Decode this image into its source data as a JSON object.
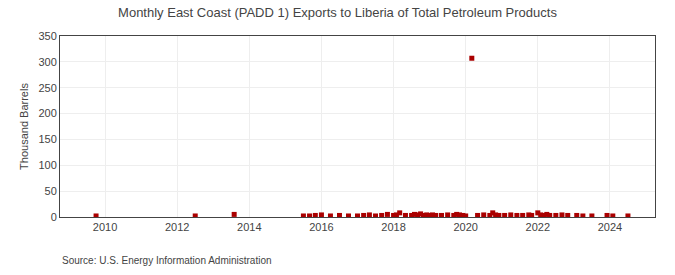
{
  "chart_data": {
    "type": "scatter",
    "title": "Monthly East Coast (PADD 1) Exports to Liberia of Total Petroleum Products",
    "ylabel": "Thousand Barrels",
    "annotations": [
      "Source: U.S. Energy Information Administration"
    ],
    "color": "#aa0000",
    "marker": "square",
    "grid": true,
    "xlim": [
      2008.75,
      2025.25
    ],
    "xticks": [
      2010,
      2012,
      2014,
      2016,
      2018,
      2020,
      2022,
      2024
    ],
    "ylim": [
      0,
      350
    ],
    "yticks": [
      0,
      50,
      100,
      150,
      200,
      250,
      300,
      350
    ],
    "x": [
      2009.75,
      2012.5,
      2013.58,
      2015.5,
      2015.67,
      2015.83,
      2016.0,
      2016.25,
      2016.5,
      2016.75,
      2017.0,
      2017.17,
      2017.33,
      2017.5,
      2017.67,
      2017.83,
      2018.0,
      2018.08,
      2018.17,
      2018.33,
      2018.5,
      2018.58,
      2018.67,
      2018.75,
      2018.83,
      2018.92,
      2019.0,
      2019.08,
      2019.17,
      2019.33,
      2019.5,
      2019.67,
      2019.75,
      2019.83,
      2019.92,
      2020.0,
      2020.17,
      2020.33,
      2020.5,
      2020.67,
      2020.75,
      2020.83,
      2020.92,
      2021.08,
      2021.25,
      2021.42,
      2021.58,
      2021.75,
      2021.83,
      2022.0,
      2022.08,
      2022.17,
      2022.25,
      2022.33,
      2022.5,
      2022.67,
      2022.83,
      2023.08,
      2023.25,
      2023.5,
      2023.92,
      2024.08,
      2024.5
    ],
    "values": [
      2,
      2,
      5,
      2,
      2,
      3,
      4,
      2,
      3,
      2,
      2,
      3,
      4,
      2,
      3,
      5,
      3,
      4,
      8,
      3,
      3,
      5,
      4,
      6,
      3,
      4,
      3,
      4,
      3,
      3,
      4,
      3,
      5,
      4,
      3,
      2,
      307,
      3,
      4,
      3,
      8,
      4,
      3,
      3,
      4,
      3,
      3,
      4,
      3,
      8,
      4,
      3,
      5,
      3,
      3,
      4,
      3,
      3,
      2,
      2,
      3,
      2,
      2
    ]
  }
}
